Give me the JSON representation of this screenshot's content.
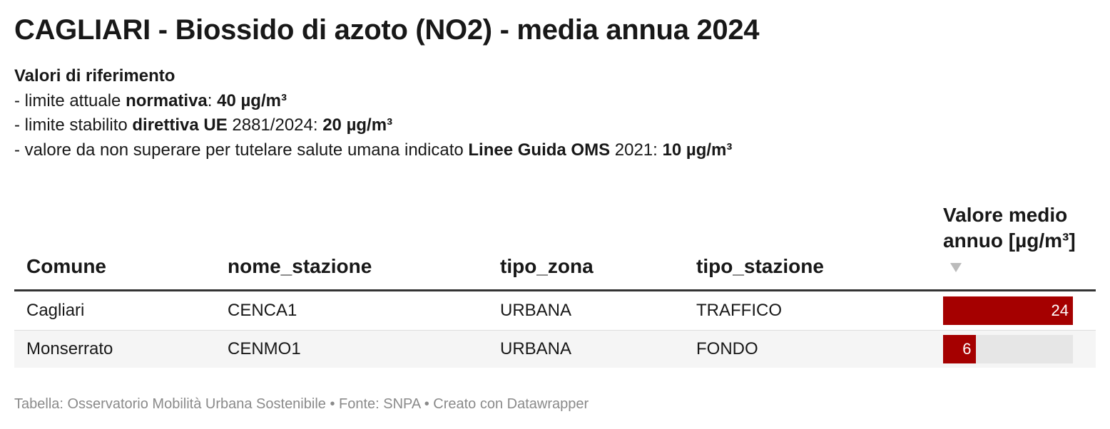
{
  "header": {
    "title": "CAGLIARI - Biossido di azoto (NO2) - media annua 2024"
  },
  "description": {
    "heading": "Valori di riferimento",
    "lines": [
      [
        {
          "text": "- limite attuale "
        },
        {
          "text": "normativa",
          "bold": true
        },
        {
          "text": ": "
        },
        {
          "text": "40 µg/m³",
          "bold": true
        }
      ],
      [
        {
          "text": "- limite stabilito "
        },
        {
          "text": "direttiva UE",
          "bold": true
        },
        {
          "text": " 2881/2024: "
        },
        {
          "text": "20 µg/m³",
          "bold": true
        }
      ],
      [
        {
          "text": "- valore da non superare per tutelare salute umana indicato "
        },
        {
          "text": "Linee Guida OMS",
          "bold": true
        },
        {
          "text": " 2021: "
        },
        {
          "text": "10 µg/m³",
          "bold": true
        }
      ]
    ]
  },
  "table": {
    "columns": [
      "Comune",
      "nome_stazione",
      "tipo_zona",
      "tipo_stazione",
      "Valore medio annuo [µg/m³]"
    ],
    "rows": [
      [
        "Cagliari",
        "CENCA1",
        "URBANA",
        "TRAFFICO",
        24
      ],
      [
        "Monserrato",
        "CENMO1",
        "URBANA",
        "FONDO",
        6
      ]
    ],
    "bar_color": "#a50000"
  },
  "footer": "Tabella: Osservatorio Mobilità Urbana Sostenibile • Fonte: SNPA • Creato con Datawrapper"
}
